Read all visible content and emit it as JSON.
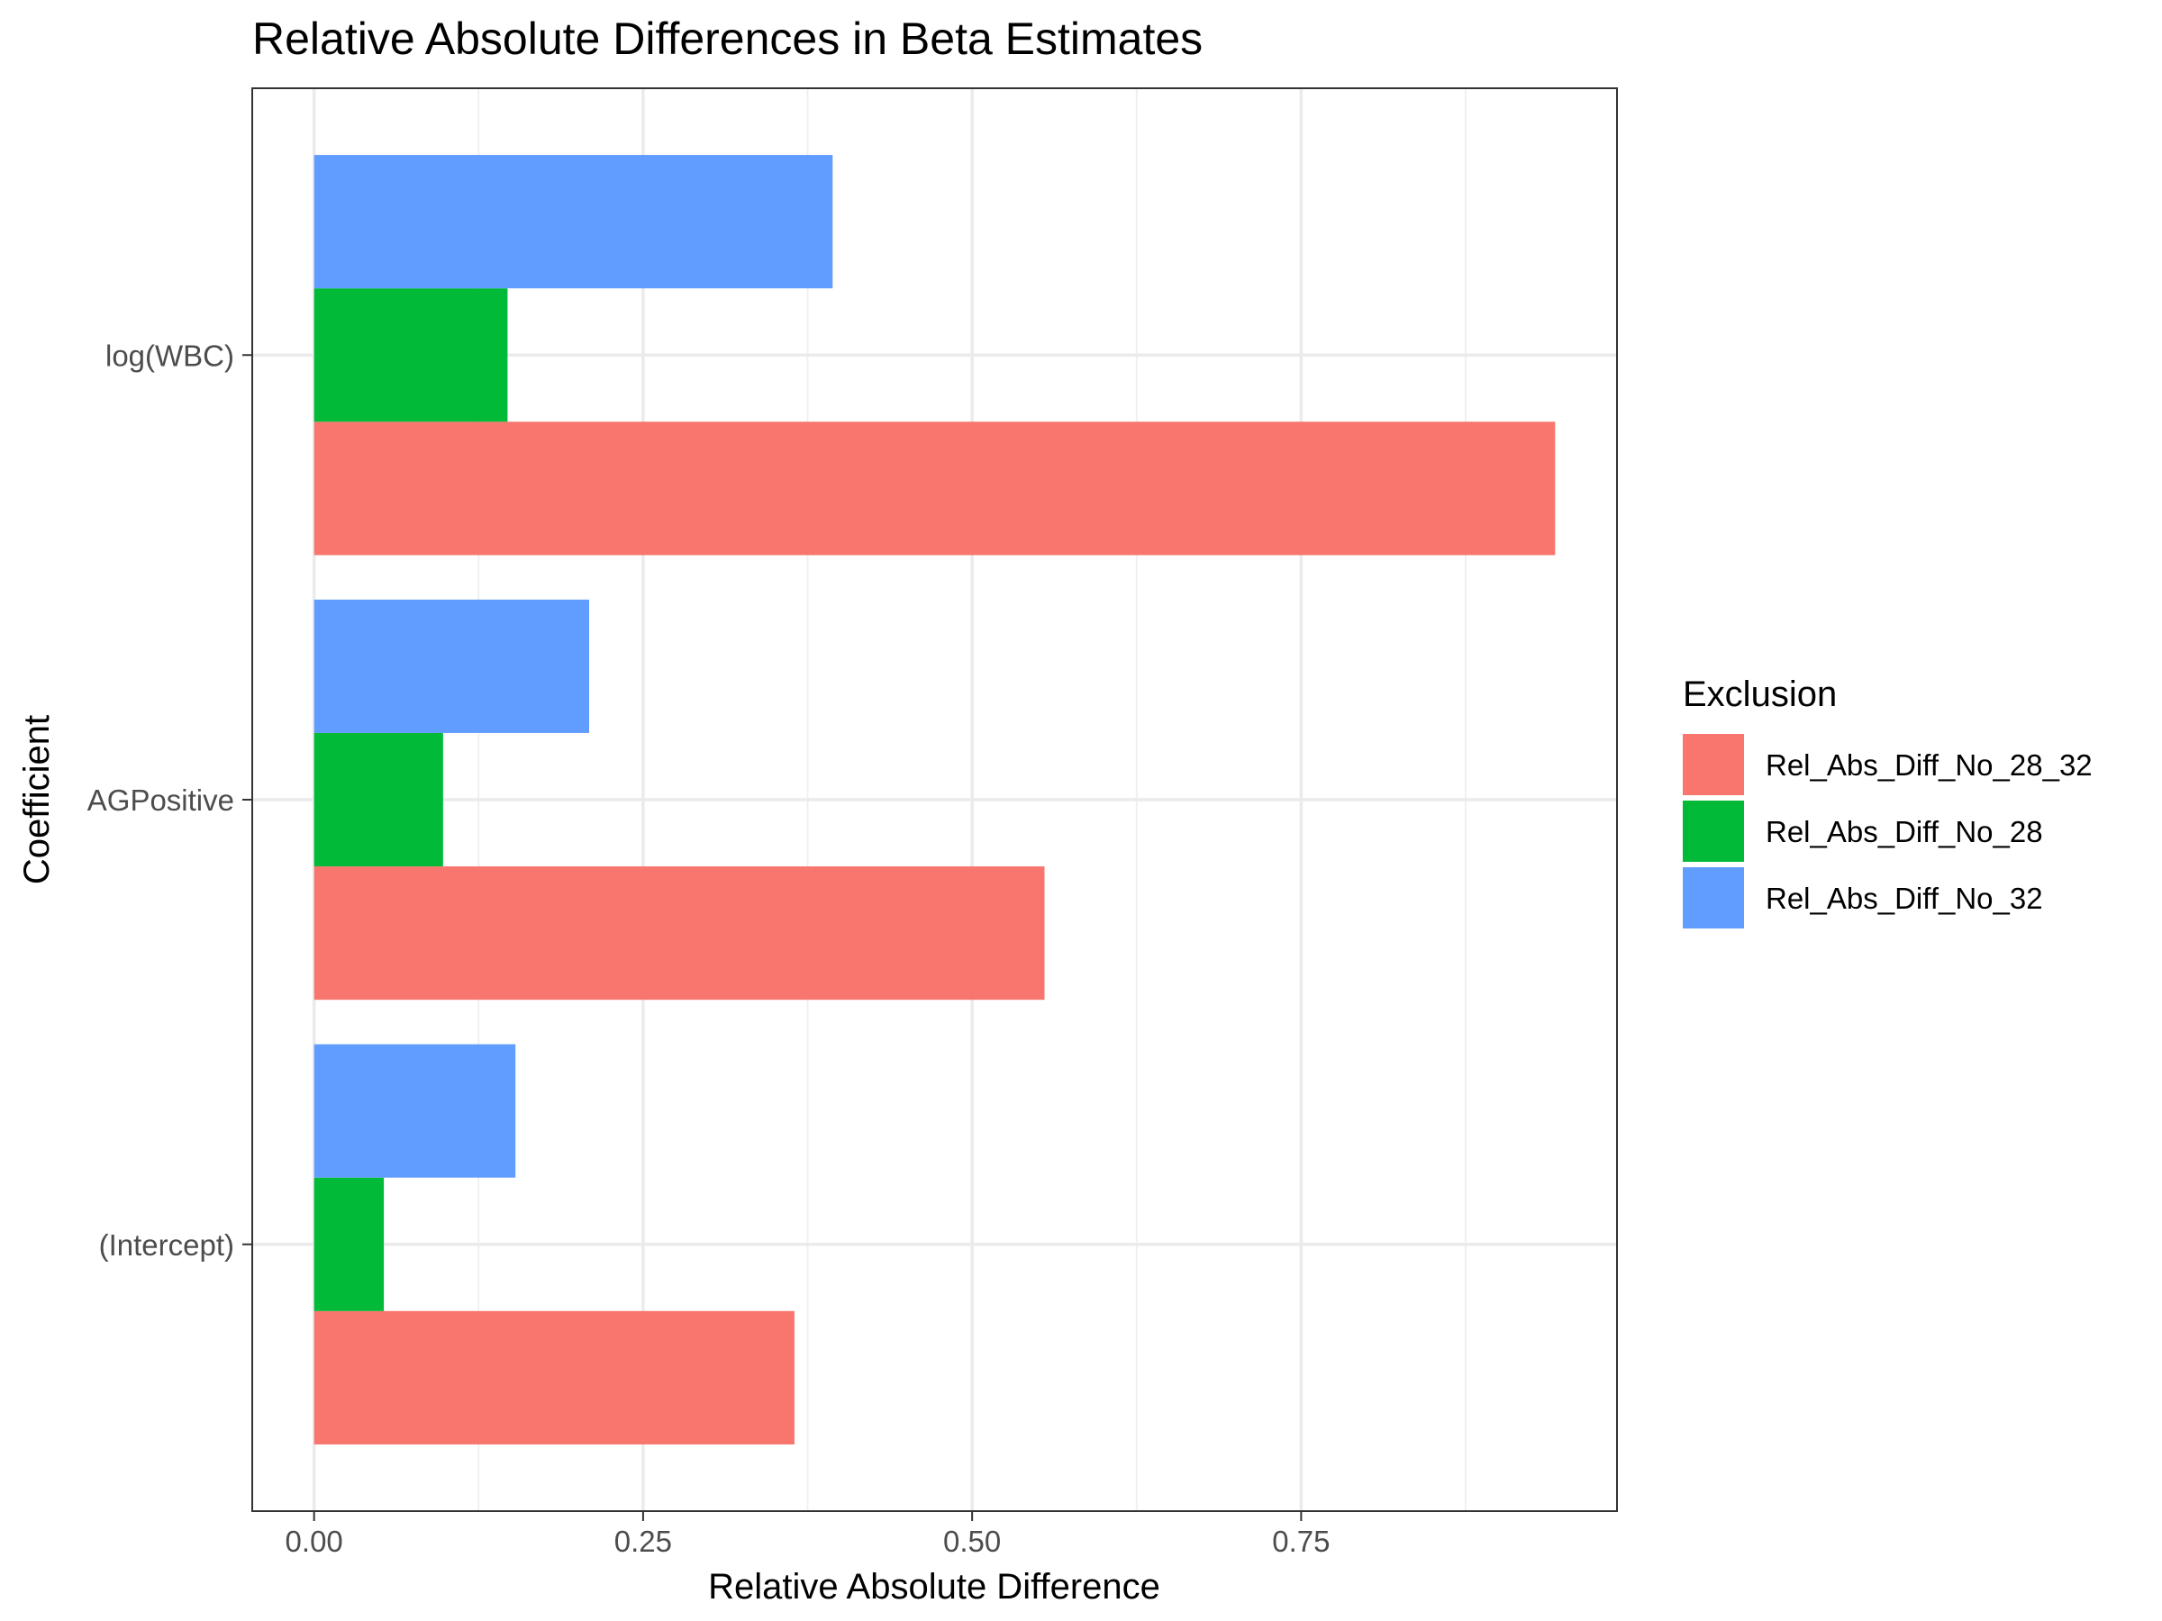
{
  "chart_data": {
    "type": "bar",
    "orientation": "horizontal",
    "title": "Relative Absolute Differences in Beta Estimates",
    "xlabel": "Relative Absolute Difference",
    "ylabel": "Coefficient",
    "categories": [
      "(Intercept)",
      "AGPositive",
      "log(WBC)"
    ],
    "series": [
      {
        "name": "Rel_Abs_Diff_No_28_32",
        "color": "#F8766D",
        "values": [
          0.365,
          0.555,
          0.943
        ]
      },
      {
        "name": "Rel_Abs_Diff_No_28",
        "color": "#00BA38",
        "values": [
          0.053,
          0.098,
          0.147
        ]
      },
      {
        "name": "Rel_Abs_Diff_No_32",
        "color": "#619CFF",
        "values": [
          0.153,
          0.209,
          0.394
        ]
      }
    ],
    "xlim": [
      -0.047,
      0.99
    ],
    "xticks": [
      0.0,
      0.25,
      0.5,
      0.75
    ],
    "xtick_labels": [
      "0.00",
      "0.25",
      "0.50",
      "0.75"
    ],
    "grid": true,
    "legend": {
      "title": "Exclusion",
      "position": "right"
    }
  }
}
